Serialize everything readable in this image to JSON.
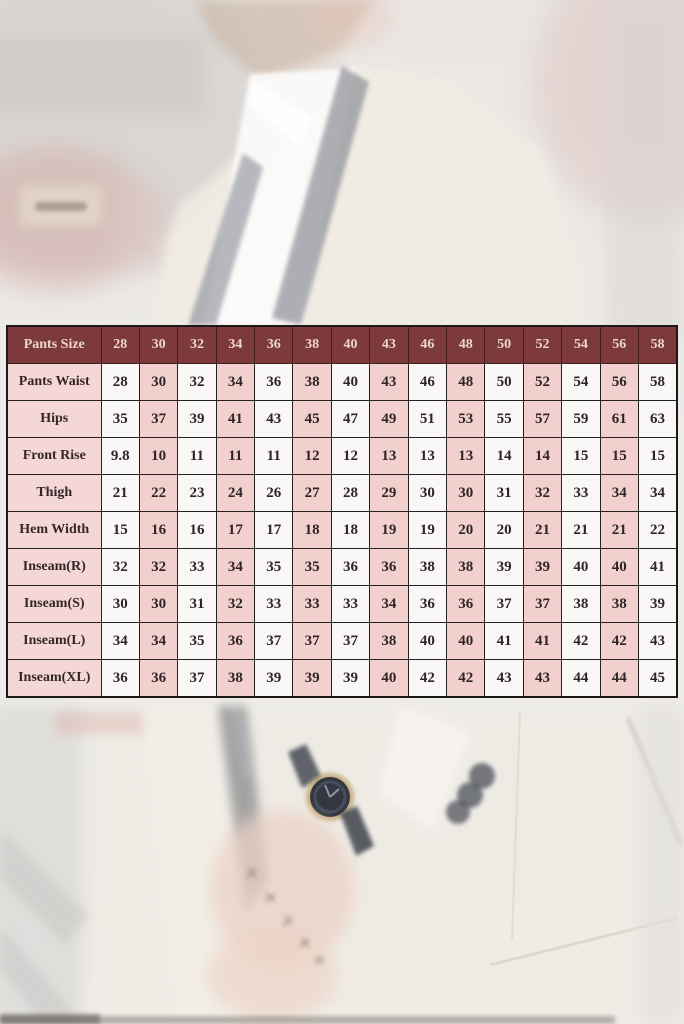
{
  "colors": {
    "header_bg": "#7c3a3a",
    "header_text": "#eed5d3",
    "label_bg": "#f5d8d6",
    "cell_pink": "#f2d0ce",
    "cell_white": "#faf8f6",
    "text": "#2f2526",
    "border": "#262120"
  },
  "chart_data": {
    "type": "table",
    "title": "Pants Size",
    "header_label": "Pants Size",
    "sizes": [
      "28",
      "30",
      "32",
      "34",
      "36",
      "38",
      "40",
      "43",
      "46",
      "48",
      "50",
      "52",
      "54",
      "56",
      "58"
    ],
    "rows": [
      {
        "label": "Pants Waist",
        "values": [
          "28",
          "30",
          "32",
          "34",
          "36",
          "38",
          "40",
          "43",
          "46",
          "48",
          "50",
          "52",
          "54",
          "56",
          "58"
        ]
      },
      {
        "label": "Hips",
        "values": [
          "35",
          "37",
          "39",
          "41",
          "43",
          "45",
          "47",
          "49",
          "51",
          "53",
          "55",
          "57",
          "59",
          "61",
          "63"
        ]
      },
      {
        "label": "Front Rise",
        "values": [
          "9.8",
          "10",
          "11",
          "11",
          "11",
          "12",
          "12",
          "13",
          "13",
          "13",
          "14",
          "14",
          "15",
          "15",
          "15"
        ]
      },
      {
        "label": "Thigh",
        "values": [
          "21",
          "22",
          "23",
          "24",
          "26",
          "27",
          "28",
          "29",
          "30",
          "30",
          "31",
          "32",
          "33",
          "34",
          "34"
        ]
      },
      {
        "label": "Hem Width",
        "values": [
          "15",
          "16",
          "16",
          "17",
          "17",
          "18",
          "18",
          "19",
          "19",
          "20",
          "20",
          "21",
          "21",
          "21",
          "22"
        ]
      },
      {
        "label": "Inseam(R)",
        "values": [
          "32",
          "32",
          "33",
          "34",
          "35",
          "35",
          "36",
          "36",
          "38",
          "38",
          "39",
          "39",
          "40",
          "40",
          "41"
        ]
      },
      {
        "label": "Inseam(S)",
        "values": [
          "30",
          "30",
          "31",
          "32",
          "33",
          "33",
          "33",
          "34",
          "36",
          "36",
          "37",
          "37",
          "38",
          "38",
          "39"
        ]
      },
      {
        "label": "Inseam(L)",
        "values": [
          "34",
          "34",
          "35",
          "36",
          "37",
          "37",
          "37",
          "38",
          "40",
          "40",
          "41",
          "41",
          "42",
          "42",
          "43"
        ]
      },
      {
        "label": "Inseam(XL)",
        "values": [
          "36",
          "36",
          "37",
          "38",
          "39",
          "39",
          "39",
          "40",
          "42",
          "42",
          "43",
          "43",
          "44",
          "44",
          "45"
        ]
      }
    ],
    "layout": {
      "column_shading": "alternating white/pink starting white at size 28",
      "grid": true
    }
  }
}
